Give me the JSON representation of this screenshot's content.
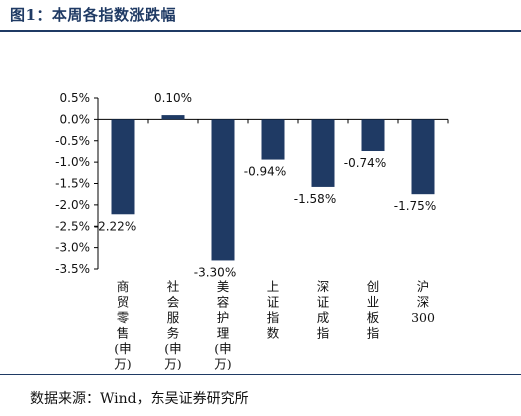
{
  "title": "图1：本周各指数涨跌幅",
  "source": "数据来源：Wind，东吴证券研究所",
  "colors": {
    "bar": "#1f3a64",
    "rule": "#1f3a64"
  },
  "chart_data": {
    "type": "bar",
    "categories": [
      [
        "商",
        "贸",
        "零",
        "售",
        "(申",
        "万)"
      ],
      [
        "社",
        "会",
        "服",
        "务",
        "(申",
        "万)"
      ],
      [
        "美",
        "容",
        "护",
        "理",
        "(申",
        "万)"
      ],
      [
        "上",
        "证",
        "指",
        "数"
      ],
      [
        "深",
        "证",
        "成",
        "指"
      ],
      [
        "创",
        "业",
        "板",
        "指"
      ],
      [
        "沪",
        "深",
        "300"
      ]
    ],
    "values": [
      -2.22,
      0.1,
      -3.3,
      -0.94,
      -1.58,
      -0.74,
      -1.75
    ],
    "value_labels": [
      "-2.22%",
      "0.10%",
      "-3.30%",
      "-0.94%",
      "-1.58%",
      "-0.74%",
      "-1.75%"
    ],
    "y_ticks": [
      "0.5%",
      "0.0%",
      "-0.5%",
      "-1.0%",
      "-1.5%",
      "-2.0%",
      "-2.5%",
      "-3.0%",
      "-3.5%"
    ],
    "ylim": [
      -3.5,
      0.5
    ],
    "grid": false,
    "legend": "none"
  }
}
